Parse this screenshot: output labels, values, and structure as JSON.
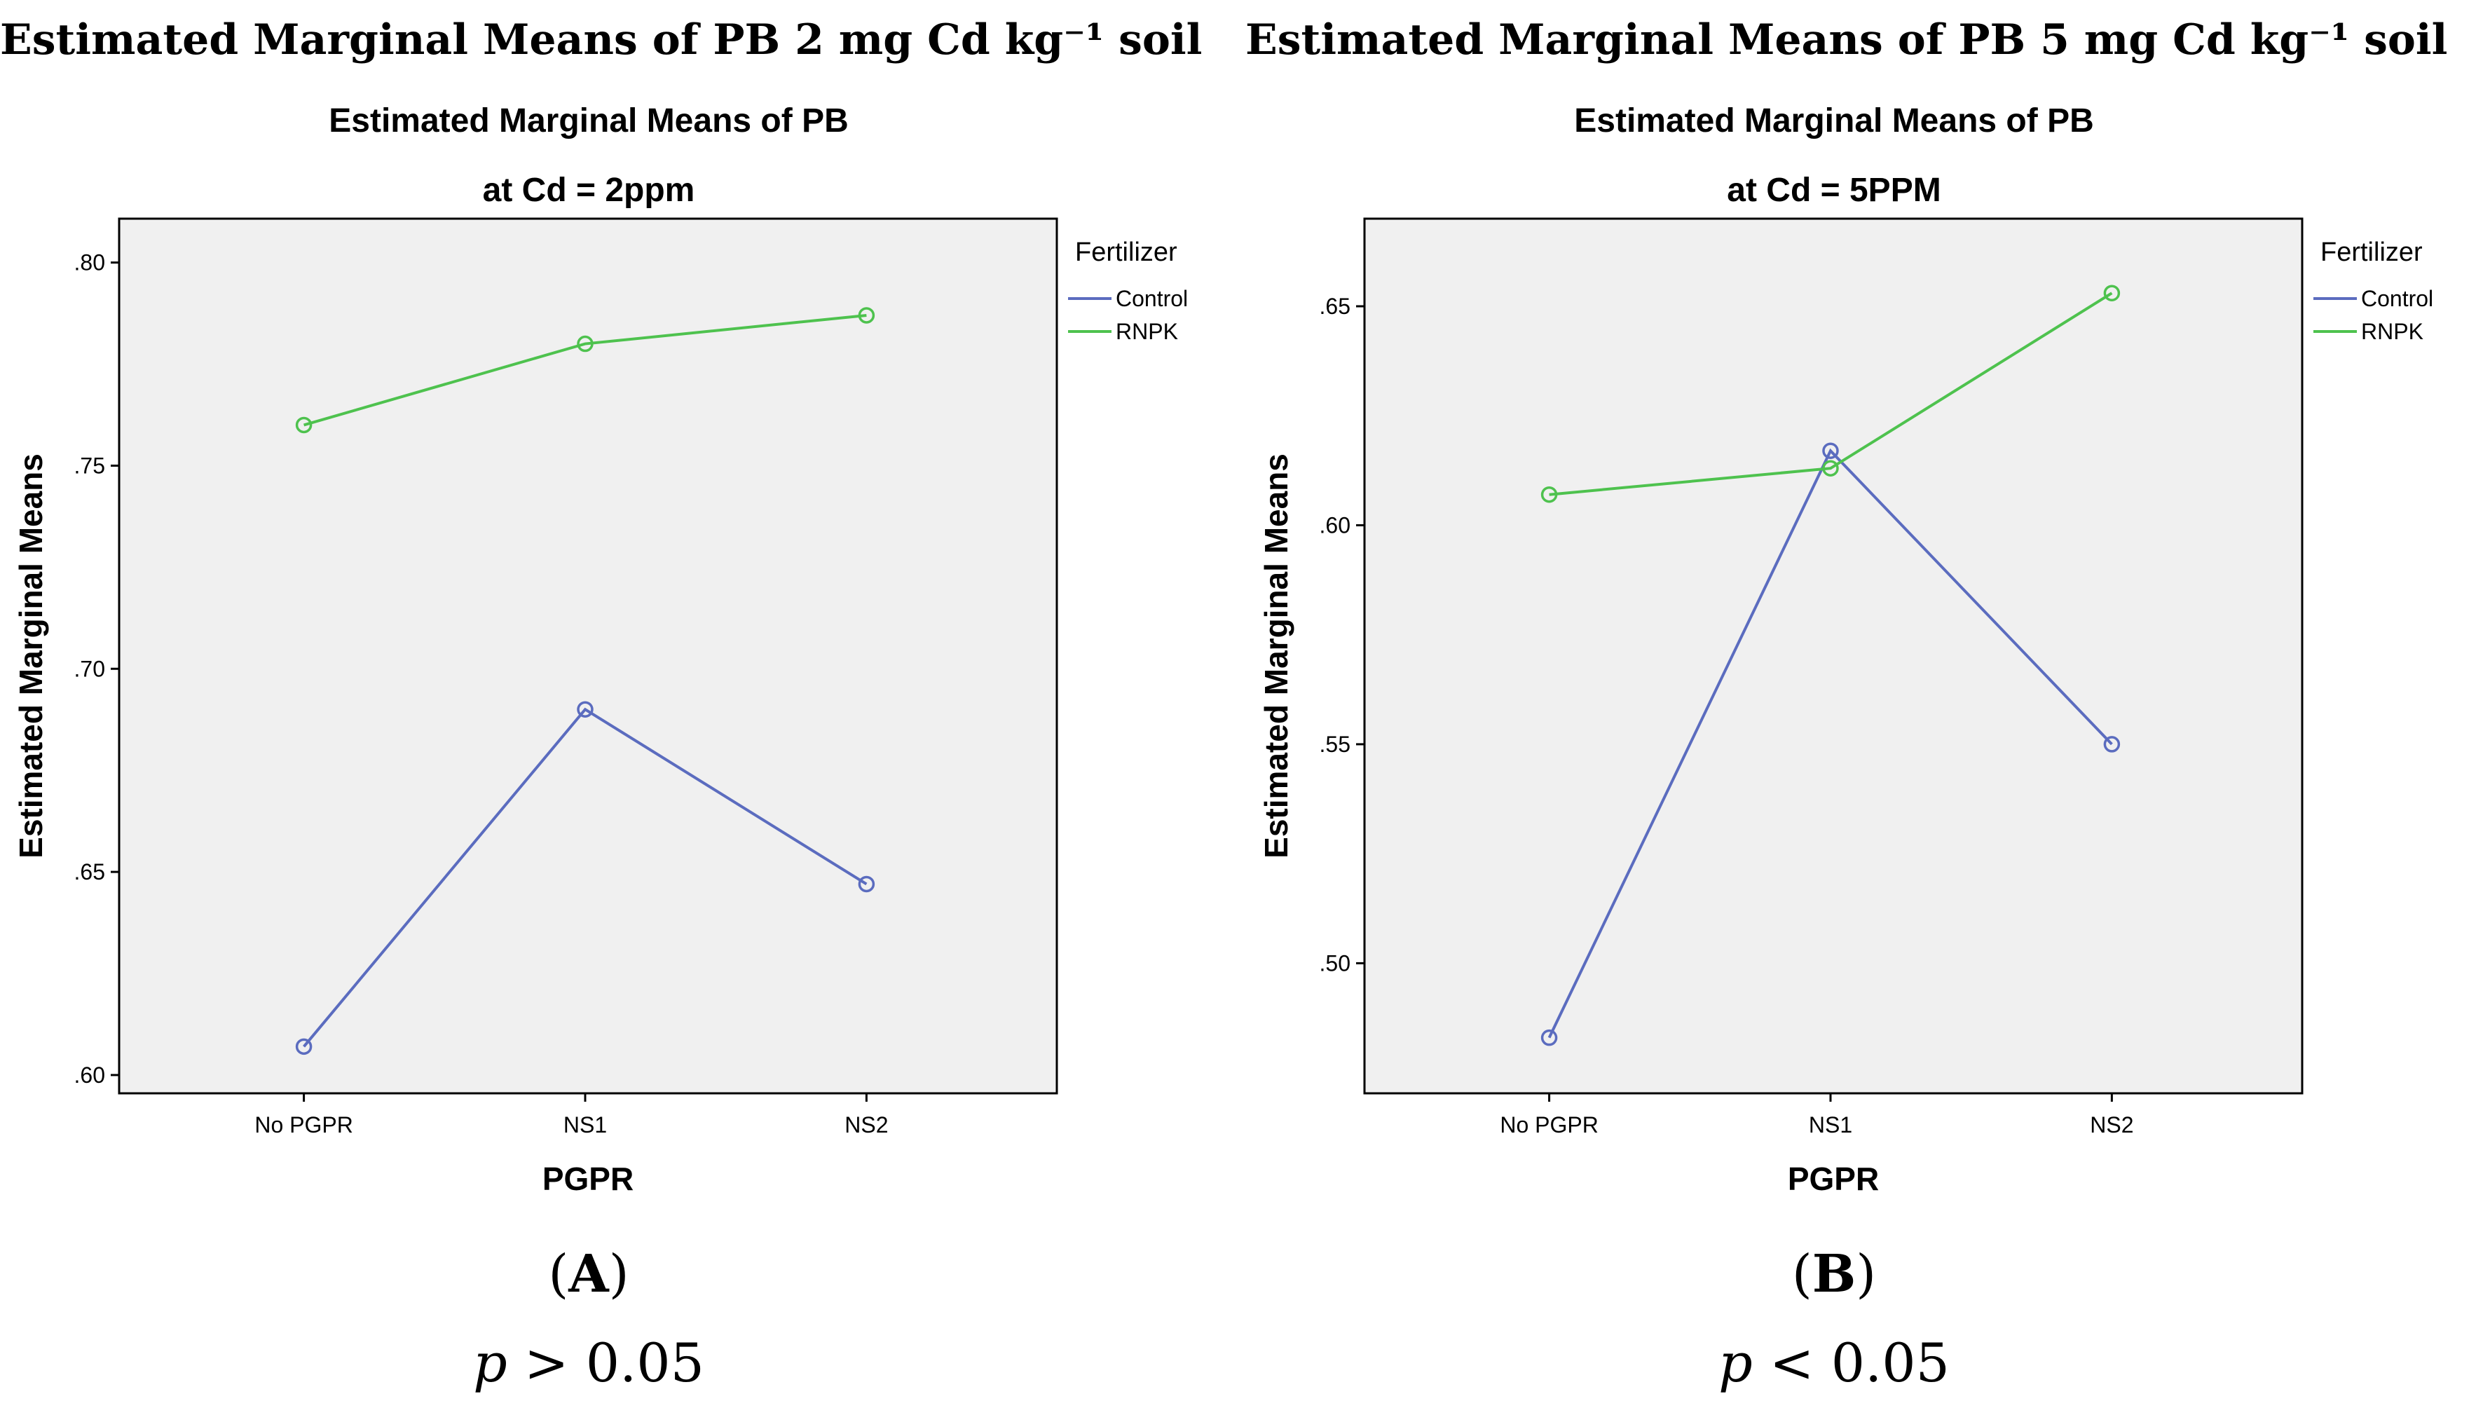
{
  "chart_data": [
    {
      "type": "line",
      "figure_title": "Estimated Marginal Means of PB 2 mg Cd kg⁻¹ soil",
      "title": "Estimated Marginal Means of PB",
      "subtitle": "at Cd = 2ppm",
      "xlabel": "PGPR",
      "ylabel": "Estimated Marginal Means",
      "categories": [
        "No PGPR",
        "NS1",
        "NS2"
      ],
      "yticks": [
        0.6,
        0.65,
        0.7,
        0.75,
        0.8
      ],
      "ytick_labels": [
        ".60",
        ".65",
        ".70",
        ".75",
        ".80"
      ],
      "ylim": [
        0.5955,
        0.8108
      ],
      "legend_title": "Fertilizer",
      "legend_position": "top-right",
      "series": [
        {
          "name": "Control",
          "color": "#5b6cbf",
          "values": [
            0.607,
            0.69,
            0.647
          ]
        },
        {
          "name": "RNPK",
          "color": "#4ec24e",
          "values": [
            0.76,
            0.78,
            0.787
          ]
        }
      ],
      "panel_label": "A",
      "p_symbol": "p",
      "p_text": " > 0.05"
    },
    {
      "type": "line",
      "figure_title": "Estimated Marginal Means of PB 5 mg Cd kg⁻¹ soil",
      "title": "Estimated Marginal Means of PB",
      "subtitle": "at Cd = 5PPM",
      "xlabel": "PGPR",
      "ylabel": "Estimated Marginal Means",
      "categories": [
        "No PGPR",
        "NS1",
        "NS2"
      ],
      "yticks": [
        0.5,
        0.55,
        0.6,
        0.65
      ],
      "ytick_labels": [
        ".50",
        ".55",
        ".60",
        ".65"
      ],
      "ylim": [
        0.4703,
        0.67
      ],
      "legend_title": "Fertilizer",
      "legend_position": "top-right",
      "series": [
        {
          "name": "Control",
          "color": "#5b6cbf",
          "values": [
            0.483,
            0.617,
            0.55
          ]
        },
        {
          "name": "RNPK",
          "color": "#4ec24e",
          "values": [
            0.607,
            0.613,
            0.653
          ]
        }
      ],
      "panel_label": "B",
      "p_symbol": "p",
      "p_text": " < 0.05"
    }
  ]
}
